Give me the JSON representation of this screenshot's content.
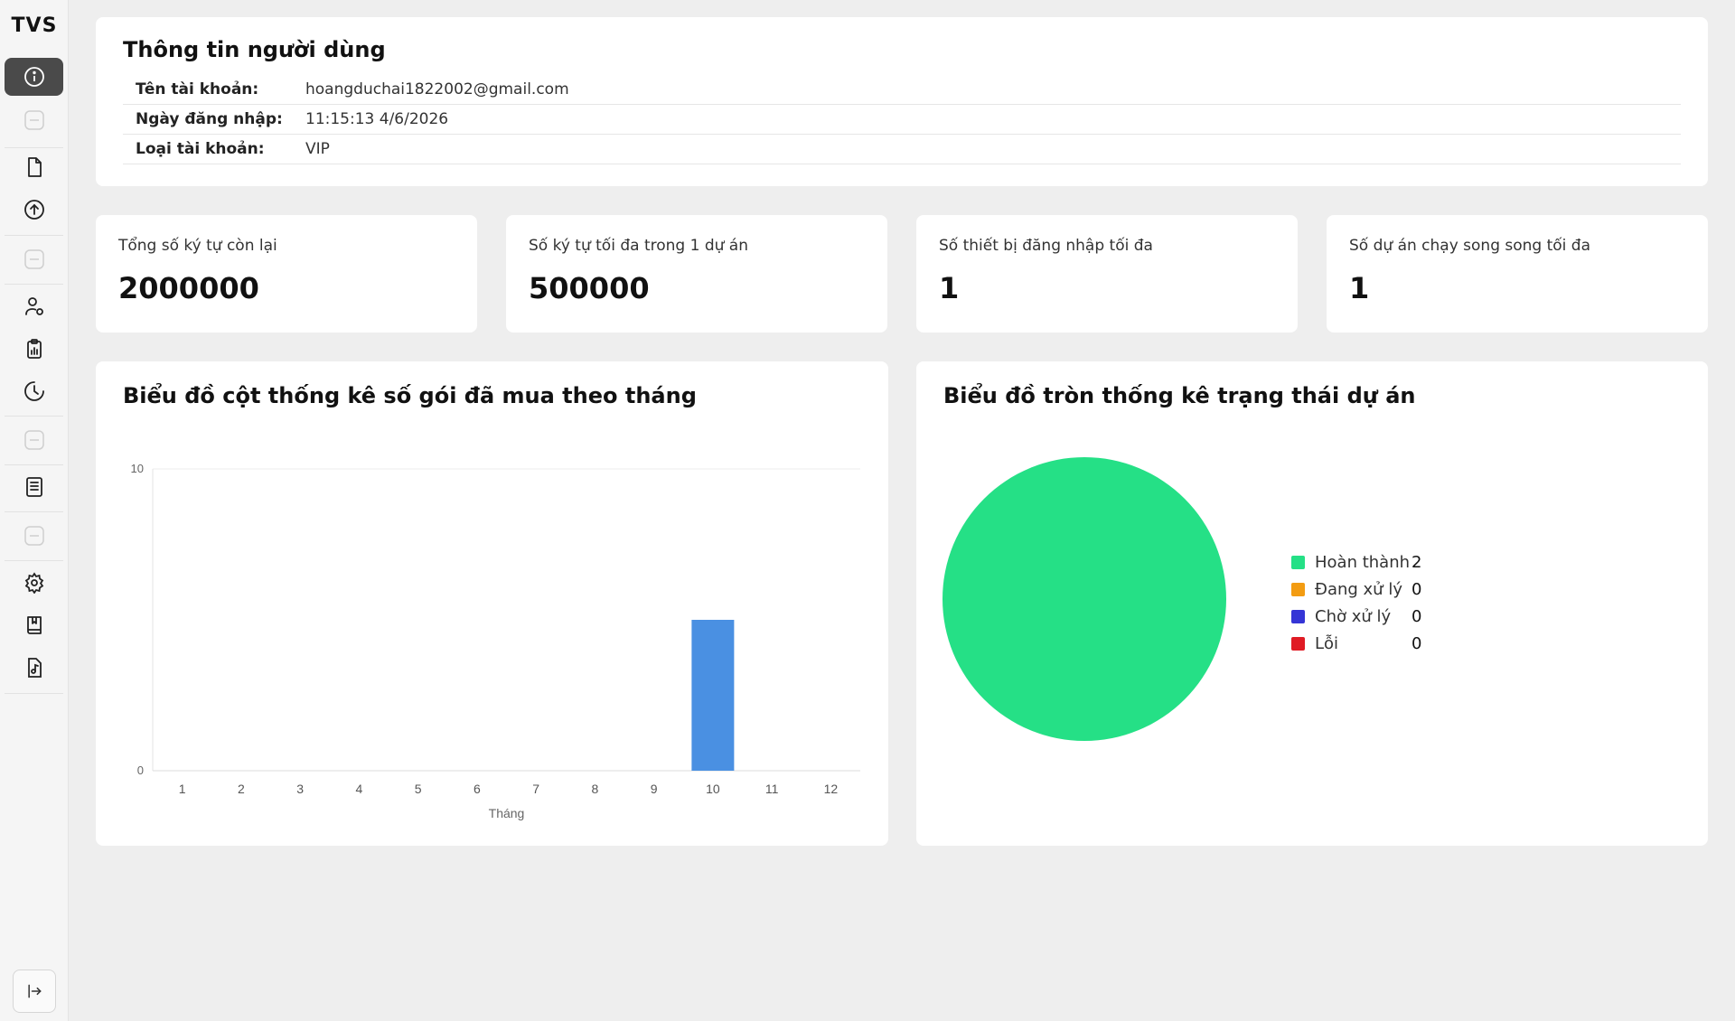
{
  "app": {
    "logo": "TVS"
  },
  "sidebar": {
    "items": [
      {
        "name": "sidebar-item-info",
        "icon": "info-circle-icon",
        "active": true
      },
      {
        "name": "sidebar-item-files",
        "icon": "file-icon"
      },
      {
        "name": "sidebar-item-upload",
        "icon": "upload-circle-icon"
      },
      {
        "name": "sidebar-item-user-settings",
        "icon": "user-gear-icon"
      },
      {
        "name": "sidebar-item-reports",
        "icon": "clipboard-chart-icon"
      },
      {
        "name": "sidebar-item-history",
        "icon": "clock-icon"
      },
      {
        "name": "sidebar-item-list",
        "icon": "list-document-icon"
      },
      {
        "name": "sidebar-item-settings",
        "icon": "gear-icon"
      },
      {
        "name": "sidebar-item-bookmarks",
        "icon": "book-icon"
      },
      {
        "name": "sidebar-item-audio",
        "icon": "music-file-icon"
      }
    ],
    "collapse_icon": "collapse-sidebar-icon"
  },
  "user_info": {
    "title": "Thông tin người dùng",
    "rows": [
      {
        "label": "Tên tài khoản:",
        "value": "hoangduchai1822002@gmail.com"
      },
      {
        "label": "Ngày đăng nhập:",
        "value": "11:15:13 4/6/2026"
      },
      {
        "label": "Loại tài khoản:",
        "value": "VIP"
      }
    ]
  },
  "stats": [
    {
      "label": "Tổng số ký tự còn lại",
      "value": "2000000"
    },
    {
      "label": "Số ký tự tối đa trong 1 dự án",
      "value": "500000"
    },
    {
      "label": "Số thiết bị đăng nhập tối đa",
      "value": "1"
    },
    {
      "label": "Số dự án chạy song song tối đa",
      "value": "1"
    }
  ],
  "bar_chart": {
    "title": "Biểu đồ cột thống kê số gói đã mua theo tháng"
  },
  "pie_chart": {
    "title": "Biểu đồ tròn thống kê trạng thái dự án"
  },
  "colors": {
    "bar": "#4a90e2",
    "complete": "#25e086",
    "processing": "#f39c12",
    "waiting": "#3535d6",
    "error": "#e01b24"
  },
  "chart_data": [
    {
      "type": "bar",
      "title": "Biểu đồ cột thống kê số gói đã mua theo tháng",
      "categories": [
        "1",
        "2",
        "3",
        "4",
        "5",
        "6",
        "7",
        "8",
        "9",
        "10",
        "11",
        "12"
      ],
      "values": [
        0,
        0,
        0,
        0,
        0,
        0,
        0,
        0,
        0,
        5,
        0,
        0
      ],
      "xlabel": "Tháng",
      "ylabel": "",
      "ylim": [
        0,
        10
      ],
      "yticks": [
        "0",
        "10"
      ],
      "grid": true
    },
    {
      "type": "pie",
      "title": "Biểu đồ tròn thống kê trạng thái dự án",
      "legend_placement": "right",
      "slices": [
        {
          "label": "Hoàn thành",
          "value": 2,
          "color": "#25e086"
        },
        {
          "label": "Đang xử lý",
          "value": 0,
          "color": "#f39c12"
        },
        {
          "label": "Chờ xử lý",
          "value": 0,
          "color": "#3535d6"
        },
        {
          "label": "Lỗi",
          "value": 0,
          "color": "#e01b24"
        }
      ]
    }
  ]
}
